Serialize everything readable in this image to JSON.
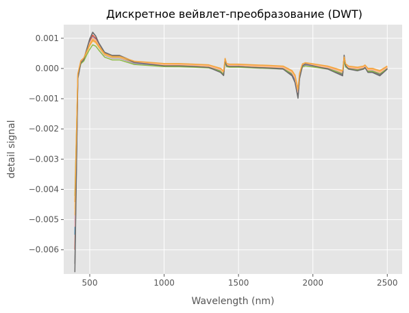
{
  "chart_data": {
    "type": "line",
    "title": "Дискретное вейвлет-преобразование (DWT)",
    "xlabel": "Wavelength (nm)",
    "ylabel": "detail signal",
    "xlim": [
      325,
      2600
    ],
    "ylim": [
      -0.0068,
      0.00145
    ],
    "xticks": [
      500,
      1000,
      1500,
      2000,
      2500
    ],
    "xtick_labels": [
      "500",
      "1000",
      "1500",
      "2000",
      "2500"
    ],
    "yticks": [
      -0.006,
      -0.005,
      -0.004,
      -0.003,
      -0.002,
      -0.001,
      0.0,
      0.001
    ],
    "ytick_labels": [
      "−0.006",
      "−0.005",
      "−0.004",
      "−0.003",
      "−0.002",
      "−0.001",
      "0.000",
      "0.001"
    ],
    "grid": true,
    "legend": "none",
    "colors": {
      "background": "#e5e5e5",
      "grid": "#ffffff",
      "text": "#555555",
      "series": [
        "#e24a33",
        "#348abd",
        "#988ed5",
        "#777777",
        "#fbc15e",
        "#8eba42",
        "#ffb5b8",
        "#fdb863",
        "#6b6b6b",
        "#f2a541"
      ]
    },
    "series_shape": {
      "x": [
        400,
        420,
        440,
        460,
        480,
        500,
        520,
        540,
        560,
        600,
        650,
        700,
        800,
        900,
        1000,
        1100,
        1200,
        1300,
        1380,
        1400,
        1410,
        1420,
        1440,
        1500,
        1600,
        1700,
        1800,
        1860,
        1880,
        1900,
        1910,
        1930,
        1950,
        2000,
        2100,
        2150,
        2200,
        2210,
        2220,
        2240,
        2300,
        2340,
        2350,
        2370,
        2400,
        2450,
        2500
      ],
      "y": [
        -0.006,
        -0.0003,
        0.0002,
        0.0003,
        0.0006,
        0.0009,
        0.0011,
        0.001,
        0.0008,
        0.0005,
        0.0004,
        0.0004,
        0.0002,
        0.00015,
        0.0001,
        0.0001,
        8e-05,
        5e-05,
        -0.0001,
        -0.0002,
        0.0003,
        0.0001,
        8e-05,
        8e-05,
        5e-05,
        3e-05,
        0.0,
        -0.0002,
        -0.0004,
        -0.0009,
        -0.0003,
        0.0001,
        0.00015,
        0.0001,
        0.0,
        -0.0001,
        -0.0002,
        0.0004,
        0.0001,
        0.0,
        -5e-05,
        0.0,
        5e-05,
        -0.0001,
        -0.0001,
        -0.0002,
        0.0
      ],
      "variation": [
        0.5,
        0.3,
        0.2,
        0.2,
        0.35,
        0.45,
        0.45,
        0.4,
        0.35,
        0.35,
        0.4,
        0.4,
        0.4,
        0.35,
        0.3,
        0.35,
        0.4,
        0.4,
        0.5,
        0.3,
        0.3,
        0.35,
        0.4,
        0.4,
        0.4,
        0.45,
        0.5,
        0.5,
        0.5,
        0.3,
        0.4,
        0.5,
        0.5,
        0.5,
        0.5,
        0.5,
        0.5,
        0.5,
        0.5,
        0.5,
        0.5,
        0.5,
        0.5,
        0.5,
        0.5,
        0.5,
        0.5
      ]
    },
    "series": [
      {
        "scale": 1.0,
        "offset": 0.0
      },
      {
        "scale": 0.92,
        "offset": 2e-05
      },
      {
        "scale": 0.85,
        "offset": -1e-05
      },
      {
        "scale": 1.08,
        "offset": 1e-05
      },
      {
        "scale": 0.78,
        "offset": 3e-05
      },
      {
        "scale": 0.7,
        "offset": -2e-05
      },
      {
        "scale": 0.88,
        "offset": 4e-05
      },
      {
        "scale": 0.82,
        "offset": 6e-05
      },
      {
        "scale": 1.12,
        "offset": -2e-05
      },
      {
        "scale": 0.75,
        "offset": 8e-05
      }
    ]
  }
}
